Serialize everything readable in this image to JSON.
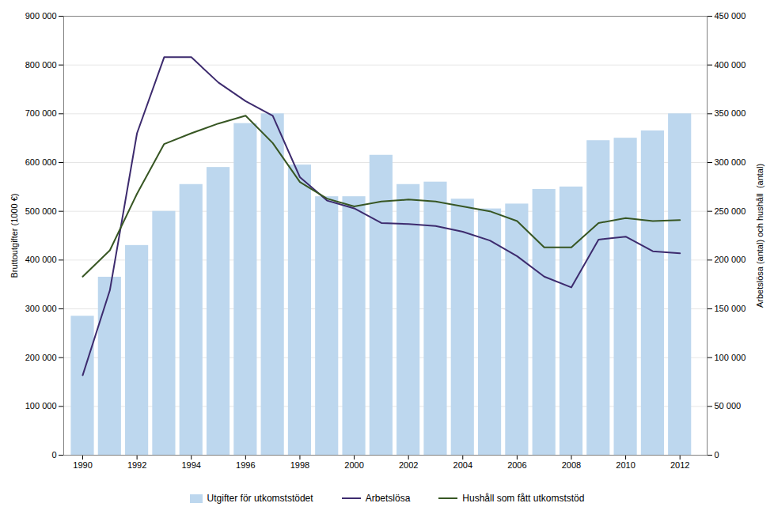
{
  "chart_data": {
    "type": "bar",
    "x": [
      1990,
      1991,
      1992,
      1993,
      1994,
      1995,
      1996,
      1997,
      1998,
      1999,
      2000,
      2001,
      2002,
      2003,
      2004,
      2005,
      2006,
      2007,
      2008,
      2009,
      2010,
      2011,
      2012
    ],
    "series": [
      {
        "name": "Utgifter för utkomststödet",
        "type": "bar",
        "color": "#bdd7ee",
        "values": [
          285000,
          365000,
          430000,
          500000,
          555000,
          590000,
          680000,
          700000,
          595000,
          530000,
          530000,
          615000,
          555000,
          560000,
          525000,
          505000,
          515000,
          545000,
          550000,
          645000,
          650000,
          665000,
          700000
        ]
      },
      {
        "name": "Arbetslösa",
        "type": "line",
        "color": "#3d2b6e",
        "axis": "y2",
        "values": [
          82000,
          169000,
          330000,
          408000,
          408000,
          382000,
          363000,
          348000,
          285000,
          261000,
          253000,
          238000,
          237000,
          235000,
          229000,
          220000,
          204000,
          183000,
          172000,
          221000,
          224000,
          209000,
          207000
        ]
      },
      {
        "name": "Hushåll som fått utkomststöd",
        "type": "line",
        "color": "#375623",
        "axis": "y2",
        "values": [
          183000,
          210000,
          268000,
          319000,
          330000,
          340000,
          348000,
          320000,
          280000,
          263000,
          255000,
          260000,
          262000,
          260000,
          255000,
          250000,
          240000,
          213000,
          213000,
          238000,
          243000,
          240000,
          241000
        ]
      }
    ],
    "ylabel": "Bruttoutgifter (1000 €)",
    "y2label": "Arbetslösa (antal) och hushåll  (antal)",
    "xlim": [
      1989.3,
      2013.0
    ],
    "xticks": [
      1990,
      1992,
      1994,
      1996,
      1998,
      2000,
      2002,
      2004,
      2006,
      2008,
      2010,
      2012
    ],
    "ylim": [
      0,
      900000
    ],
    "yticks": [
      0,
      {
        "value": 100000,
        "label": "100 000"
      },
      {
        "value": 200000,
        "label": "200 000"
      },
      {
        "value": 300000,
        "label": "300 000"
      },
      {
        "value": 400000,
        "label": "400 000"
      },
      {
        "value": 500000,
        "label": "500 000"
      },
      {
        "value": 600000,
        "label": "600 000"
      },
      {
        "value": 700000,
        "label": "700 000"
      },
      {
        "value": 800000,
        "label": "800 000"
      },
      {
        "value": 900000,
        "label": "900 000"
      }
    ],
    "y2lim": [
      0,
      450000
    ],
    "y2ticks": [
      0,
      {
        "value": 50000,
        "label": "50 000"
      },
      {
        "value": 100000,
        "label": "100 000"
      },
      {
        "value": 150000,
        "label": "150 000"
      },
      {
        "value": 200000,
        "label": "200 000"
      },
      {
        "value": 250000,
        "label": "250 000"
      },
      {
        "value": 300000,
        "label": "300 000"
      },
      {
        "value": 350000,
        "label": "350 000"
      },
      {
        "value": 400000,
        "label": "400 000"
      },
      {
        "value": 450000,
        "label": "450 000"
      }
    ],
    "grid": true,
    "legend": "bottom"
  }
}
